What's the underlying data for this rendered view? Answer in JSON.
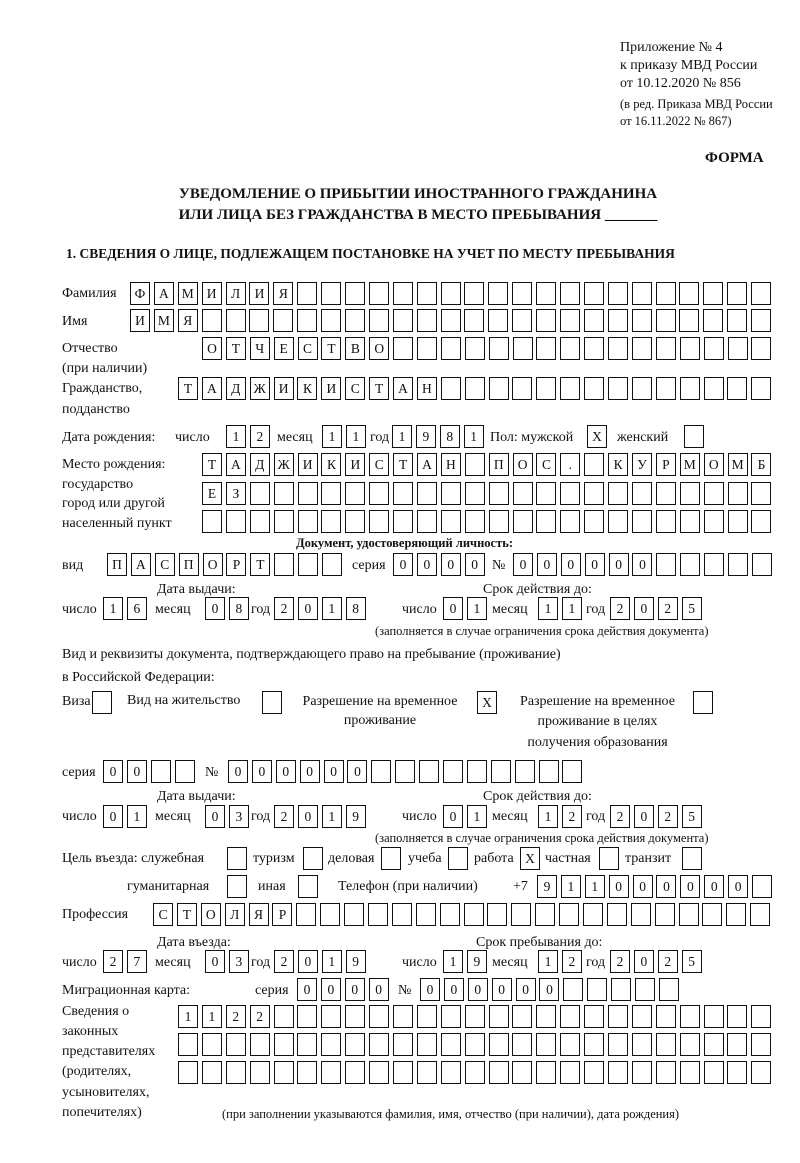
{
  "header": {
    "appendix_line1": "Приложение № 4",
    "appendix_line2": "к приказу МВД России",
    "appendix_line3": "от 10.12.2020 № 856",
    "amendment_line1": "(в ред. Приказа МВД России",
    "amendment_line2": "от 16.11.2022 № 867)",
    "form_label": "ФОРМА",
    "title_line1": "УВЕДОМЛЕНИЕ О ПРИБЫТИИ ИНОСТРАННОГО ГРАЖДАНИНА",
    "title_line2": "ИЛИ ЛИЦА БЕЗ ГРАЖДАНСТВА В МЕСТО ПРЕБЫВАНИЯ _______",
    "section1": "1. СВЕДЕНИЯ О ЛИЦЕ, ПОДЛЕЖАЩЕМ ПОСТАНОВКЕ НА УЧЕТ ПО МЕСТУ ПРЕБЫВАНИЯ"
  },
  "labels": {
    "surname": "Фамилия",
    "name": "Имя",
    "patronymic1": "Отчество",
    "patronymic2": "(при наличии)",
    "citizenship1": "Гражданство,",
    "citizenship2": "подданство",
    "birth_date": "Дата рождения:",
    "day": "число",
    "month": "месяц",
    "year": "год",
    "sex_male": "Пол: мужской",
    "sex_female": "женский",
    "birthplace1": "Место рождения:",
    "birthplace2": "государство",
    "birthplace3": "город или другой",
    "birthplace4": "населенный пункт",
    "id_doc": "Документ, удостоверяющий личность:",
    "doc_kind": "вид",
    "series": "серия",
    "number": "№",
    "issue_date": "Дата выдачи:",
    "valid_until": "Срок действия до:",
    "valid_note": "(заполняется в случае ограничения срока действия документа)",
    "stay_doc1": "Вид и реквизиты документа, подтверждающего право на пребывание (проживание)",
    "stay_doc2": "в Российской Федерации:",
    "visa": "Виза",
    "residence": "Вид на жительство",
    "trp1": "Разрешение на временное",
    "trp2": "проживание",
    "trp_edu1": "Разрешение на временное",
    "trp_edu2": "проживание в целях",
    "trp_edu3": "получения образования",
    "purpose": "Цель въезда: служебная",
    "tourism": "туризм",
    "business": "деловая",
    "study": "учеба",
    "work": "работа",
    "private": "частная",
    "transit": "транзит",
    "humanitarian": "гуманитарная",
    "other": "иная",
    "phone": "Телефон (при наличии)",
    "phone_prefix": "+7",
    "profession": "Профессия",
    "entry_date": "Дата въезда:",
    "stay_until": "Срок пребывания до:",
    "migration_card": "Миграционная карта:",
    "reps1": "Сведения о",
    "reps2": "законных",
    "reps3": "представителях",
    "reps4": "(родителях,",
    "reps5": "усыновителях,",
    "reps6": "попечителях)",
    "reps_note": "(при заполнении указываются фамилия, имя, отчество (при наличии), дата рождения)"
  },
  "values": {
    "surname": "ФАМИЛИЯ",
    "name": "ИМЯ",
    "patronymic": "ОТЧЕСТВО",
    "citizenship": "ТАДЖИКИСТАН",
    "birth_day": "12",
    "birth_month": "11",
    "birth_year": "1981",
    "sex_male": "X",
    "sex_female": "",
    "birthplace_row1": "ТАДЖИКИСТАН ПОС. КУРМОМБ",
    "birthplace_row2": "ЕЗ",
    "birthplace_row3": "",
    "doc_kind": "ПАСПОРТ",
    "doc_series": "0000",
    "doc_number": "000000",
    "doc_issue_day": "16",
    "doc_issue_month": "08",
    "doc_issue_year": "2018",
    "doc_valid_day": "01",
    "doc_valid_month": "11",
    "doc_valid_year": "2025",
    "visa": "",
    "residence": "",
    "trp": "X",
    "trp_edu": "",
    "stay_series": "00",
    "stay_number": "000000",
    "stay_issue_day": "01",
    "stay_issue_month": "03",
    "stay_issue_year": "2019",
    "stay_valid_day": "01",
    "stay_valid_month": "12",
    "stay_valid_year": "2025",
    "purpose_official": "",
    "purpose_tourism": "",
    "purpose_business": "",
    "purpose_study": "",
    "purpose_work": "X",
    "purpose_private": "",
    "purpose_transit": "",
    "purpose_humanitarian": "",
    "purpose_other": "",
    "phone": "911000000",
    "profession": "СТОЛЯР",
    "entry_day": "27",
    "entry_month": "03",
    "entry_year": "2019",
    "stay_day": "19",
    "stay_month": "12",
    "stay_year": "2025",
    "mc_series": "0000",
    "mc_number": "000000",
    "reps_row1": "1122",
    "reps_row2": "",
    "reps_row3": ""
  }
}
